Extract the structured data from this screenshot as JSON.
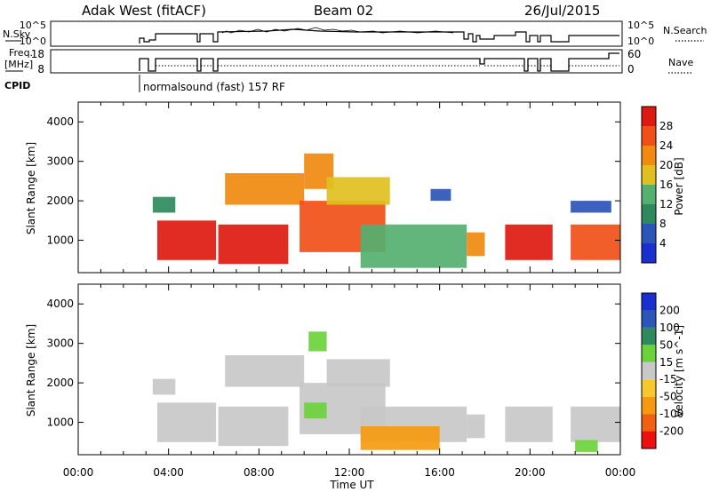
{
  "header": {
    "station": "Adak West (fitACF)",
    "beam": "Beam 02",
    "date": "26/Jul/2015"
  },
  "top_panels": {
    "nsky": {
      "label": "N.Sky",
      "ticks": [
        "10^5",
        "10^0"
      ]
    },
    "nsearch": {
      "label": "N.Search",
      "ticks": [
        "10^5",
        "10^0"
      ]
    },
    "freq": {
      "label_line1": "Freq.",
      "label_line2": "[MHz]",
      "ticks": [
        "18",
        "8"
      ]
    },
    "nave": {
      "label": "Nave",
      "ticks": [
        "60",
        "0"
      ]
    },
    "cpid": {
      "label": "CPID",
      "text": "normalsound (fast) 157 RF"
    }
  },
  "x_axis": {
    "label": "Time UT",
    "ticks": [
      "00:00",
      "04:00",
      "08:00",
      "12:00",
      "16:00",
      "20:00",
      "00:00"
    ]
  },
  "colors": {
    "power": [
      "#1a2fd0",
      "#2b55b8",
      "#2e8a5e",
      "#55b070",
      "#e0c020",
      "#f08a10",
      "#f05018",
      "#dd1a10"
    ],
    "velocity": [
      "#ee1010",
      "#f06010",
      "#f59a10",
      "#f5c830",
      "#c8c8c8",
      "#6cd23c",
      "#2e8a5e",
      "#2b55b8",
      "#1a2fd0"
    ]
  },
  "chart_data": [
    {
      "type": "heatmap",
      "panel": "power",
      "ylabel": "Slant Range [km]",
      "yticks": [
        "1000",
        "2000",
        "3000",
        "4000"
      ],
      "ylim": [
        180,
        4500
      ],
      "xlim": [
        "00:00",
        "24:00"
      ],
      "colorbar": {
        "label": "Power [dB]",
        "ticks": [
          "4",
          "8",
          "12",
          "16",
          "20",
          "24",
          "28"
        ]
      },
      "regions": [
        {
          "t0": 3.3,
          "t1": 4.3,
          "r0": 1700,
          "r1": 2100,
          "level": 2
        },
        {
          "t0": 3.5,
          "t1": 6.1,
          "r0": 500,
          "r1": 1500,
          "level": 7
        },
        {
          "t0": 6.2,
          "t1": 9.3,
          "r0": 400,
          "r1": 1400,
          "level": 7
        },
        {
          "t0": 6.5,
          "t1": 10.0,
          "r0": 1900,
          "r1": 2700,
          "level": 5
        },
        {
          "t0": 9.8,
          "t1": 13.6,
          "r0": 700,
          "r1": 2000,
          "level": 6
        },
        {
          "t0": 10.0,
          "t1": 11.3,
          "r0": 2300,
          "r1": 3200,
          "level": 5
        },
        {
          "t0": 11.0,
          "t1": 13.8,
          "r0": 1900,
          "r1": 2600,
          "level": 4
        },
        {
          "t0": 12.5,
          "t1": 17.2,
          "r0": 300,
          "r1": 1400,
          "level": 3
        },
        {
          "t0": 15.6,
          "t1": 16.5,
          "r0": 2000,
          "r1": 2300,
          "level": 1
        },
        {
          "t0": 17.2,
          "t1": 18.0,
          "r0": 600,
          "r1": 1200,
          "level": 5
        },
        {
          "t0": 18.9,
          "t1": 21.0,
          "r0": 500,
          "r1": 1400,
          "level": 7
        },
        {
          "t0": 21.8,
          "t1": 24.0,
          "r0": 500,
          "r1": 1400,
          "level": 6
        },
        {
          "t0": 21.8,
          "t1": 23.6,
          "r0": 1700,
          "r1": 2000,
          "level": 1
        }
      ]
    },
    {
      "type": "heatmap",
      "panel": "velocity",
      "ylabel": "Slant Range [km]",
      "yticks": [
        "1000",
        "2000",
        "3000",
        "4000"
      ],
      "ylim": [
        180,
        4500
      ],
      "xlim": [
        "00:00",
        "24:00"
      ],
      "colorbar": {
        "label": "Velocity [m s^-1]",
        "ticks": [
          "-200",
          "-100",
          "-50",
          "-15",
          "15",
          "50",
          "100",
          "200"
        ]
      },
      "regions": [
        {
          "t0": 3.3,
          "t1": 4.3,
          "r0": 1700,
          "r1": 2100,
          "level": 4
        },
        {
          "t0": 3.5,
          "t1": 6.1,
          "r0": 500,
          "r1": 1500,
          "level": 4
        },
        {
          "t0": 6.2,
          "t1": 9.3,
          "r0": 400,
          "r1": 1400,
          "level": 4
        },
        {
          "t0": 6.5,
          "t1": 10.0,
          "r0": 1900,
          "r1": 2700,
          "level": 4
        },
        {
          "t0": 9.8,
          "t1": 13.6,
          "r0": 700,
          "r1": 2000,
          "level": 4
        },
        {
          "t0": 10.0,
          "t1": 11.0,
          "r0": 1100,
          "r1": 1500,
          "level": 5
        },
        {
          "t0": 10.2,
          "t1": 11.0,
          "r0": 2800,
          "r1": 3300,
          "level": 5
        },
        {
          "t0": 11.0,
          "t1": 13.8,
          "r0": 1900,
          "r1": 2600,
          "level": 4
        },
        {
          "t0": 12.5,
          "t1": 17.2,
          "r0": 500,
          "r1": 1400,
          "level": 4
        },
        {
          "t0": 12.5,
          "t1": 16.0,
          "r0": 300,
          "r1": 900,
          "level": 2
        },
        {
          "t0": 17.2,
          "t1": 18.0,
          "r0": 600,
          "r1": 1200,
          "level": 4
        },
        {
          "t0": 18.9,
          "t1": 21.0,
          "r0": 500,
          "r1": 1400,
          "level": 4
        },
        {
          "t0": 21.8,
          "t1": 24.0,
          "r0": 500,
          "r1": 1400,
          "level": 4
        },
        {
          "t0": 22.0,
          "t1": 23.0,
          "r0": 250,
          "r1": 550,
          "level": 5
        }
      ]
    }
  ]
}
